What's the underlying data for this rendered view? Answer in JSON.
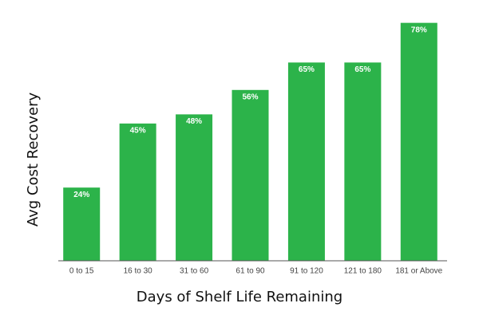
{
  "chart_data": {
    "type": "bar",
    "xlabel": "Days of Shelf Life Remaining",
    "ylabel": "Avg Cost Recovery",
    "categories": [
      "0 to 15",
      "16 to 30",
      "31 to 60",
      "61 to 90",
      "91 to 120",
      "121 to 180",
      "181 or Above"
    ],
    "values": [
      24,
      45,
      48,
      56,
      65,
      65,
      78
    ],
    "value_labels": [
      "24%",
      "45%",
      "48%",
      "56%",
      "65%",
      "65%",
      "78%"
    ],
    "color": "#2cb34a",
    "ylim": [
      0,
      80
    ]
  }
}
